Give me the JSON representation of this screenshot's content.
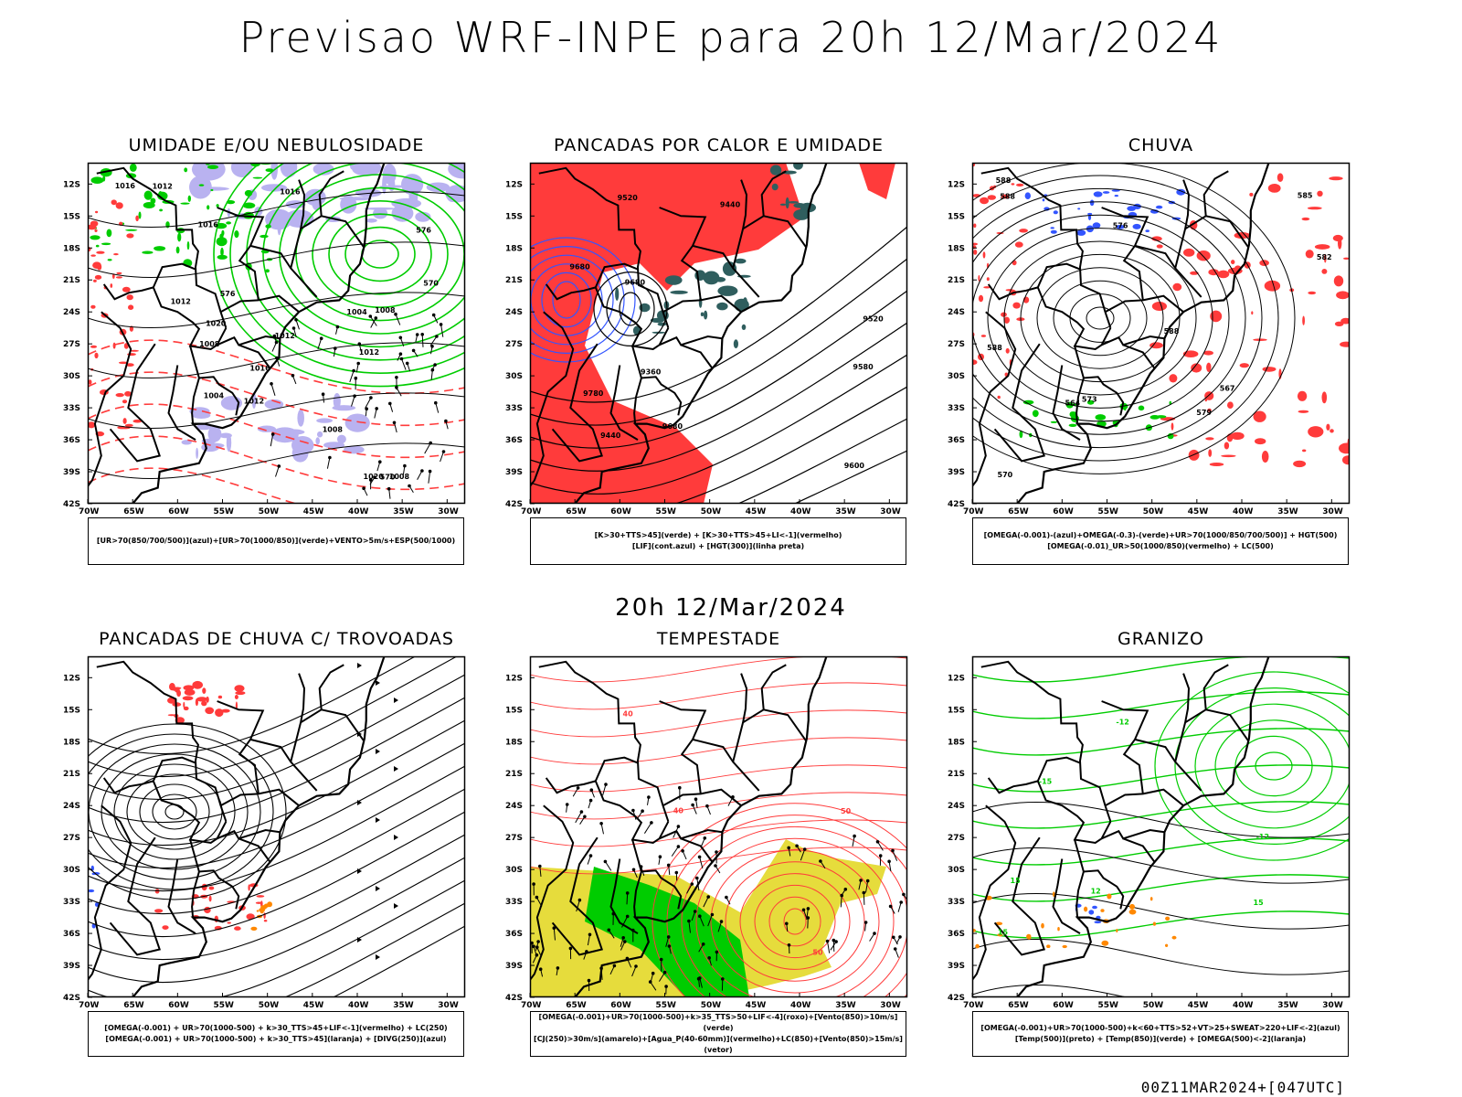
{
  "main_title": "Previsao WRF-INPE  para 20h 12/Mar/2024",
  "mid_date": "20h 12/Mar/2024",
  "footer": "00Z11MAR2024+[047UTC]",
  "axes": {
    "lat_labels": [
      "12S",
      "15S",
      "18S",
      "21S",
      "24S",
      "27S",
      "30S",
      "33S",
      "36S",
      "39S",
      "42S"
    ],
    "lon_labels": [
      "70W",
      "65W",
      "60W",
      "55W",
      "50W",
      "45W",
      "40W",
      "35W",
      "30W"
    ]
  },
  "colors": {
    "red": "#ff3b3b",
    "green": "#00cc00",
    "blue": "#3355ff",
    "lavender": "#b9b2f0",
    "yellow": "#e6dc3c",
    "teal": "#2f5e5e",
    "orange": "#ff8800"
  },
  "panels": [
    {
      "title": "UMIDADE E/OU NEBULOSIDADE",
      "legend": [
        "[UR>70(850/700/500)](azul)+[UR>70(1000/850)](verde)+VENTO>5m/s+ESP(500/1000)"
      ],
      "labels": [
        "1016",
        "1012",
        "1012",
        "1012",
        "1008",
        "1016",
        "1012",
        "1008",
        "1004",
        "1004",
        "1008",
        "1016",
        "1016",
        "1020",
        "1020",
        "1008",
        "1012",
        "570",
        "576",
        "576",
        "570"
      ]
    },
    {
      "title": "PANCADAS POR CALOR E UMIDADE",
      "legend": [
        "[K>30+TTS>45](verde) + [K>30+TTS>45+LI<-1](vermelho)",
        "[LIF](cont.azul) + [HGT(300)](linha preta)"
      ],
      "labels": [
        "9680",
        "9780",
        "9680",
        "9680",
        "9580",
        "9520",
        "9600",
        "9360",
        "9440",
        "9520",
        "9440"
      ]
    },
    {
      "title": "CHUVA",
      "legend": [
        "[OMEGA(-0.001)-(azul)+OMEGA(-0.3)-(verde)+UR>70(1000/850/700/500)] + HGT(500)",
        "[OMEGA(-0.01)_UR>50(1000/850)(vermelho) + LC(500)"
      ],
      "labels": [
        "588",
        "588",
        "588",
        "585",
        "582",
        "579",
        "576",
        "573",
        "570",
        "567",
        "564",
        "588"
      ]
    },
    {
      "title": "PANCADAS DE CHUVA C/ TROVOADAS",
      "legend": [
        "[OMEGA(-0.001) + UR>70(1000-500) + k>30_TTS>45+LIF<-1](vermelho) + LC(250)",
        "[OMEGA(-0.001) + UR>70(1000-500) + k>30_TTS>45](laranja) + [DIVG(250)](azul)"
      ],
      "labels": []
    },
    {
      "title": "TEMPESTADE",
      "legend": [
        "[OMEGA(-0.001)+UR>70(1000-500)+k>35_TTS>50+LIF<-4](roxo)+[Vento(850)>10m/s](verde)",
        "[CJ(250)>30m/s](amarelo)+[Agua_P(40-60mm)](vermelho)+LC(850)+[Vento(850)>15m/s](vetor)"
      ],
      "labels": [
        "40",
        "50",
        "40",
        "50"
      ]
    },
    {
      "title": "GRANIZO",
      "legend": [
        "[OMEGA(-0.001)+UR>70(1000-500)+k<60+TTS>52+VT>25+SWEAT>220+LIF<-2](azul)",
        "[Temp(500)](preto) + [Temp(850)](verde) + [OMEGA(500)<-2](laranja)"
      ],
      "labels": [
        "15",
        "15",
        "12",
        "-12",
        "-15",
        "-12",
        "15"
      ]
    }
  ]
}
